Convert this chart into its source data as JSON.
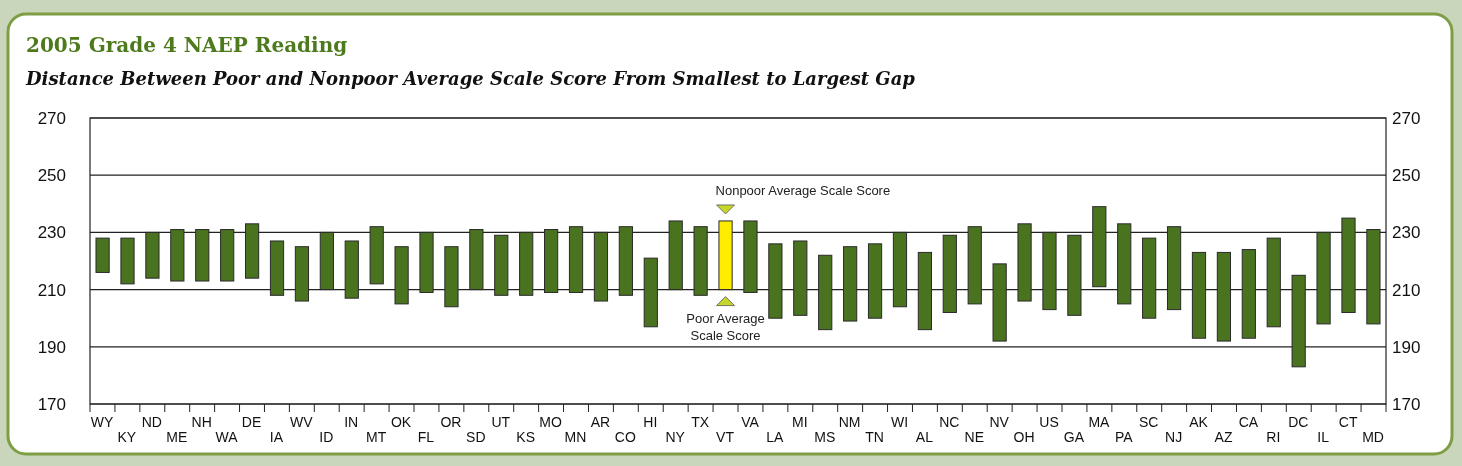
{
  "chart_data": {
    "type": "bar",
    "title": "2005 Grade 4 NAEP Reading",
    "subtitle": "Distance Between Poor and Nonpoor Average Scale Score From Smallest to Largest Gap",
    "categories": [
      "WY",
      "KY",
      "ND",
      "ME",
      "NH",
      "WA",
      "DE",
      "IA",
      "WV",
      "ID",
      "IN",
      "MT",
      "OK",
      "FL",
      "OR",
      "SD",
      "UT",
      "KS",
      "MO",
      "MN",
      "AR",
      "CO",
      "HI",
      "NY",
      "TX",
      "VT",
      "VA",
      "LA",
      "MI",
      "MS",
      "NM",
      "TN",
      "WI",
      "AL",
      "NC",
      "NE",
      "NV",
      "OH",
      "US",
      "GA",
      "MA",
      "PA",
      "SC",
      "NJ",
      "AK",
      "AZ",
      "CA",
      "RI",
      "DC",
      "IL",
      "CT",
      "MD"
    ],
    "base": [
      216,
      212,
      214,
      213,
      213,
      213,
      214,
      208,
      206,
      210,
      207,
      212,
      205,
      209,
      204,
      210,
      208,
      208,
      209,
      209,
      206,
      208,
      197,
      210,
      208,
      210,
      209,
      200,
      201,
      196,
      199,
      200,
      204,
      196,
      202,
      205,
      192,
      206,
      203,
      201,
      211,
      205,
      200,
      203,
      193,
      192,
      193,
      197,
      183,
      198,
      202,
      198
    ],
    "values": [
      12,
      16,
      16,
      18,
      18,
      18,
      19,
      19,
      19,
      20,
      20,
      20,
      20,
      21,
      21,
      21,
      21,
      22,
      22,
      23,
      24,
      24,
      24,
      24,
      24,
      24,
      25,
      26,
      26,
      26,
      26,
      26,
      26,
      27,
      27,
      27,
      27,
      27,
      27,
      28,
      28,
      28,
      28,
      29,
      30,
      31,
      31,
      31,
      32,
      32,
      33,
      33
    ],
    "colors": [
      "#4a7320",
      "#4a7320",
      "#4a7320",
      "#4a7320",
      "#4a7320",
      "#4a7320",
      "#4a7320",
      "#4a7320",
      "#4a7320",
      "#4a7320",
      "#4a7320",
      "#4a7320",
      "#4a7320",
      "#4a7320",
      "#4a7320",
      "#4a7320",
      "#4a7320",
      "#4a7320",
      "#4a7320",
      "#4a7320",
      "#4a7320",
      "#4a7320",
      "#4a7320",
      "#4a7320",
      "#4a7320",
      "#ffed00",
      "#4a7320",
      "#4a7320",
      "#4a7320",
      "#4a7320",
      "#4a7320",
      "#4a7320",
      "#4a7320",
      "#4a7320",
      "#4a7320",
      "#4a7320",
      "#4a7320",
      "#4a7320",
      "#4a7320",
      "#4a7320",
      "#4a7320",
      "#4a7320",
      "#4a7320",
      "#4a7320",
      "#4a7320",
      "#4a7320",
      "#4a7320",
      "#4a7320",
      "#4a7320",
      "#4a7320",
      "#4a7320",
      "#4a7320"
    ],
    "ylim": [
      170,
      270
    ],
    "yticks": [
      170,
      190,
      210,
      230,
      250,
      270
    ],
    "y2lim": [
      170,
      270
    ],
    "y2ticks": [
      170,
      190,
      210,
      230,
      250,
      270
    ],
    "grid": "y",
    "annotations": [
      {
        "text": "Nonpoor Average Scale Score",
        "x": "VT",
        "y": 234
      },
      {
        "text": "Poor Average Scale Score",
        "x": "VT",
        "y": 210
      }
    ]
  }
}
